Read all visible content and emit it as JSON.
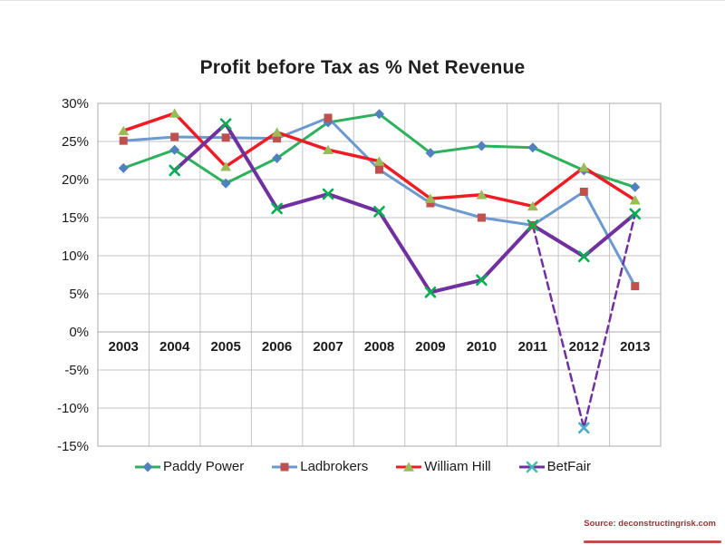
{
  "chart_data": {
    "type": "line",
    "title": "Profit before Tax as % Net Revenue",
    "source": "Source: deconstructingrisk.com",
    "categories": [
      "2003",
      "2004",
      "2005",
      "2006",
      "2007",
      "2008",
      "2009",
      "2010",
      "2011",
      "2012",
      "2013"
    ],
    "y_axis": {
      "min": -15,
      "max": 30,
      "step": 5,
      "format": "percent"
    },
    "grid": true,
    "legend_position": "bottom",
    "series": [
      {
        "name": "Paddy Power",
        "line_color": "#2eb15c",
        "line_width": 3,
        "marker": "diamond",
        "marker_color": "#4f81bd",
        "values": [
          21.5,
          23.9,
          19.5,
          22.8,
          27.5,
          28.6,
          23.5,
          24.4,
          24.2,
          21.2,
          19.0
        ]
      },
      {
        "name": "Ladbrokers",
        "line_color": "#6b99d0",
        "line_width": 3,
        "marker": "square",
        "marker_color": "#c0504d",
        "values": [
          25.1,
          25.6,
          25.5,
          25.4,
          28.1,
          21.3,
          16.9,
          15.0,
          14.0,
          18.4,
          6.0
        ]
      },
      {
        "name": "William Hill",
        "line_color": "#ef1c25",
        "line_width": 3.5,
        "marker": "triangle",
        "marker_color": "#9bbb59",
        "values": [
          26.4,
          28.7,
          21.7,
          26.2,
          23.9,
          22.4,
          17.5,
          18.0,
          16.5,
          21.6,
          17.3
        ]
      },
      {
        "name": "BetFair",
        "line_color": "#7030a0",
        "line_width": 4,
        "marker": "x",
        "marker_color": "#00b050",
        "values": [
          null,
          21.2,
          27.3,
          16.2,
          18.1,
          15.8,
          5.2,
          6.8,
          14.0,
          9.9,
          15.5
        ]
      },
      {
        "name": "BetFair",
        "dashed": true,
        "in_legend": false,
        "line_color": "#7030a0",
        "line_width": 2.5,
        "marker": "x",
        "marker_color": "#4bacc6",
        "marker_only_at": [
          9
        ],
        "values": [
          null,
          null,
          null,
          null,
          null,
          null,
          null,
          null,
          14.0,
          -12.6,
          15.5
        ]
      }
    ],
    "legend": [
      {
        "label": "Paddy Power",
        "line_color": "#2eb15c",
        "marker": "diamond",
        "marker_color": "#4f81bd"
      },
      {
        "label": "Ladbrokers",
        "line_color": "#6b99d0",
        "marker": "square",
        "marker_color": "#c0504d"
      },
      {
        "label": "William Hill",
        "line_color": "#ef1c25",
        "marker": "triangle",
        "marker_color": "#9bbb59"
      },
      {
        "label": "BetFair",
        "line_color": "#7030a0",
        "marker": "x",
        "marker_color": "#45bcad"
      }
    ]
  }
}
